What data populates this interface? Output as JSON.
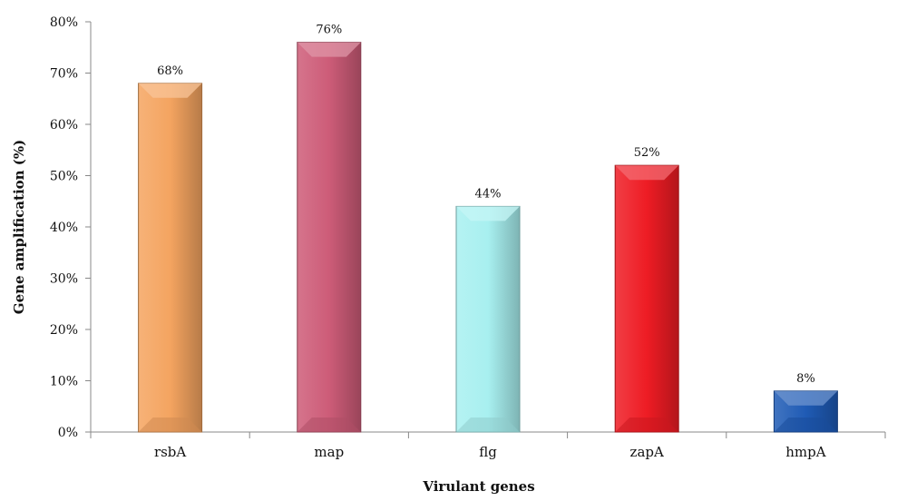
{
  "chart_data": {
    "type": "bar",
    "categories": [
      "rsbA",
      "map",
      "flg",
      "zapA",
      "hmpA"
    ],
    "values": [
      68,
      76,
      44,
      52,
      8
    ],
    "data_labels": [
      "68%",
      "76%",
      "44%",
      "52%",
      "8%"
    ],
    "colors": [
      "#F4A460",
      "#CD5C78",
      "#A8F0F0",
      "#EE1C24",
      "#1F5BB5"
    ],
    "title": "",
    "xlabel": "Virulant genes",
    "ylabel": "Gene amplification (%)",
    "ylim": [
      0,
      80
    ],
    "ytick_labels": [
      "0%",
      "10%",
      "20%",
      "30%",
      "40%",
      "50%",
      "60%",
      "70%",
      "80%"
    ],
    "grid": false,
    "legend": "none"
  }
}
